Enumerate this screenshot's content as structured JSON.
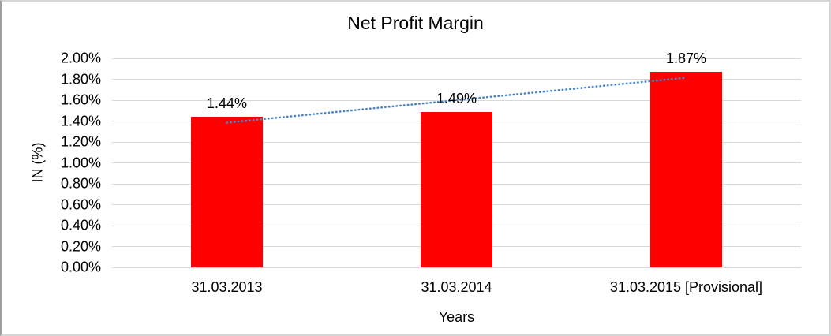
{
  "chart_data": {
    "type": "bar",
    "title": "Net Profit Margin",
    "xlabel": "Years",
    "ylabel": "IN (%)",
    "categories": [
      "31.03.2013",
      "31.03.2014",
      "31.03.2015 [Provisional]"
    ],
    "values": [
      1.44,
      1.49,
      1.87
    ],
    "data_labels": [
      "1.44%",
      "1.49%",
      "1.87%"
    ],
    "ylim": [
      0,
      2
    ],
    "ytick_step": 0.2,
    "yticks": [
      "0.00%",
      "0.20%",
      "0.40%",
      "0.60%",
      "0.80%",
      "1.00%",
      "1.20%",
      "1.40%",
      "1.60%",
      "1.80%",
      "2.00%"
    ],
    "grid": true,
    "legend_position": "none",
    "bar_color": "#FF0000",
    "gridline_color": "#D9D9D9",
    "text_color": "#000000",
    "trendline": {
      "type": "linear",
      "style": "dotted",
      "color": "#4E87C8"
    }
  }
}
